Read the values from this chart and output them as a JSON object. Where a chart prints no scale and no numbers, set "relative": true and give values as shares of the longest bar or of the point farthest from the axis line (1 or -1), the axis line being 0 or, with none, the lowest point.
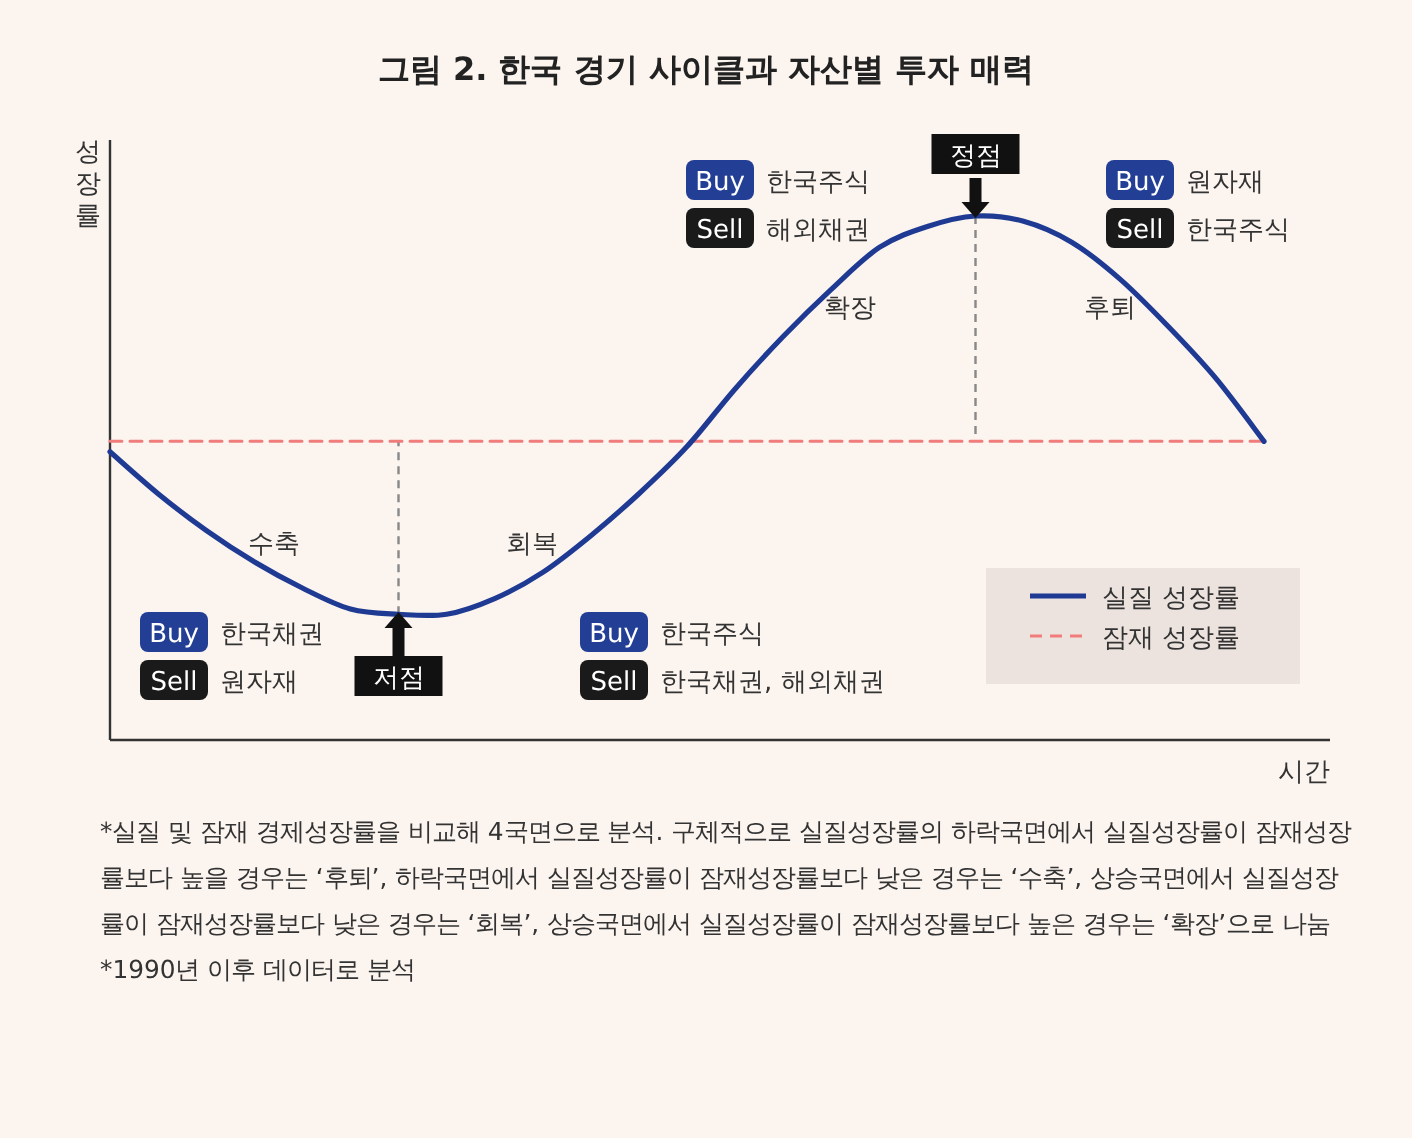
{
  "chart_data": {
    "type": "line",
    "relative": true,
    "title": "그림 2. 한국 경기 사이클과 자산별 투자 매력",
    "xlabel": "시간",
    "ylabel": "성장률",
    "legend": "bottom right",
    "grid": false,
    "marker": "none",
    "categories": [
      null,
      null,
      null,
      null,
      null,
      null,
      null,
      null,
      null,
      null,
      null,
      null,
      null,
      null,
      null,
      null,
      null,
      null,
      null,
      null,
      null,
      null,
      null,
      null,
      null
    ],
    "series": [
      {
        "name": "실질 성장률",
        "color": "#1f3a93",
        "line_style": "solid",
        "values": [
          0.55,
          0.47,
          0.4,
          0.34,
          0.29,
          0.25,
          0.24,
          0.24,
          0.27,
          0.32,
          0.39,
          0.47,
          0.56,
          0.67,
          0.77,
          0.86,
          0.94,
          0.98,
          1,
          0.99,
          0.95,
          0.88,
          0.79,
          0.69,
          0.57
        ]
      },
      {
        "name": "잠재 성장률",
        "color": "#f07c7c",
        "line_style": "dashed",
        "values": [
          0.57,
          0.57,
          0.57,
          0.57,
          0.57,
          0.57,
          0.57,
          0.57,
          0.57,
          0.57,
          0.57,
          0.57,
          0.57,
          0.57,
          0.57,
          0.57,
          0.57,
          0.57,
          0.57,
          0.57,
          0.57,
          0.57,
          0.57,
          0.57,
          0.57
        ]
      }
    ],
    "annotations": [
      "수축",
      "회복",
      "확장",
      "후퇴",
      "저점",
      "정점",
      "Buy",
      "한국채권",
      "Sell",
      "원자재",
      "Buy",
      "한국주식",
      "Sell",
      "한국채권, 해외채권",
      "Buy",
      "한국주식",
      "Sell",
      "해외채권",
      "Buy",
      "원자재",
      "Sell",
      "한국주식",
      "*실질 및 잠재 경제성장률을 비교해 4국면으로 분석. 구체적으로 실질성장률의 하락국면에서 실질성장률이 잠재성장률보다 높을 경우는 ‘후퇴’, 하락국면에서 실질성장률이 잠재성장률보다 낮은 경우는 ‘수축’, 상승국면에서 실질성장률이 잠재성장률보다 낮은 경우는 ‘회복’, 상승국면에서 실질성장률이 잠재성장률보다 높은 경우는 ‘확장’으로 나눔",
      "*1990년 이후 데이터로 분석"
    ]
  }
}
